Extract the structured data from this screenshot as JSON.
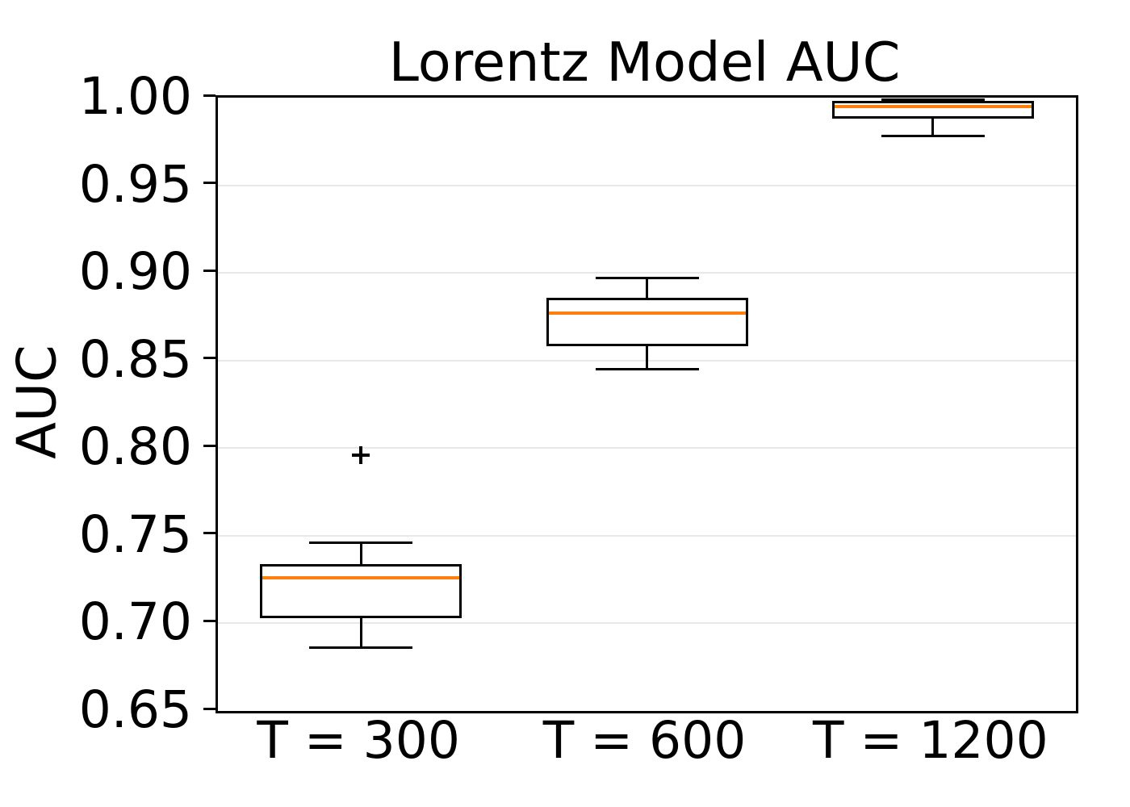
{
  "chart_data": {
    "type": "boxplot",
    "title": "Lorentz Model AUC",
    "ylabel": "AUC",
    "xlabel": "",
    "categories": [
      "T = 300",
      "T = 600",
      "T = 1200"
    ],
    "ylim": [
      0.65,
      1.0
    ],
    "yticks": [
      0.65,
      0.7,
      0.75,
      0.8,
      0.85,
      0.9,
      0.95,
      1.0
    ],
    "ytick_labels": [
      "0.65",
      "0.70",
      "0.75",
      "0.80",
      "0.85",
      "0.90",
      "0.95",
      "1.00"
    ],
    "grid": "horizontal",
    "legend": "none",
    "series": [
      {
        "label": "T = 300",
        "whisker_low": 0.686,
        "q1": 0.703,
        "median": 0.726,
        "q3": 0.734,
        "whisker_high": 0.746,
        "outliers": [
          0.796
        ]
      },
      {
        "label": "T = 600",
        "whisker_low": 0.845,
        "q1": 0.858,
        "median": 0.877,
        "q3": 0.886,
        "whisker_high": 0.897,
        "outliers": []
      },
      {
        "label": "T = 1200",
        "whisker_low": 0.978,
        "q1": 0.988,
        "median": 0.995,
        "q3": 0.998,
        "whisker_high": 0.999,
        "outliers": []
      }
    ],
    "colors": {
      "median": "#ff7f0e",
      "box_line": "#000000",
      "grid": "#e8e8e8",
      "background": "#ffffff",
      "text": "#000000"
    }
  }
}
